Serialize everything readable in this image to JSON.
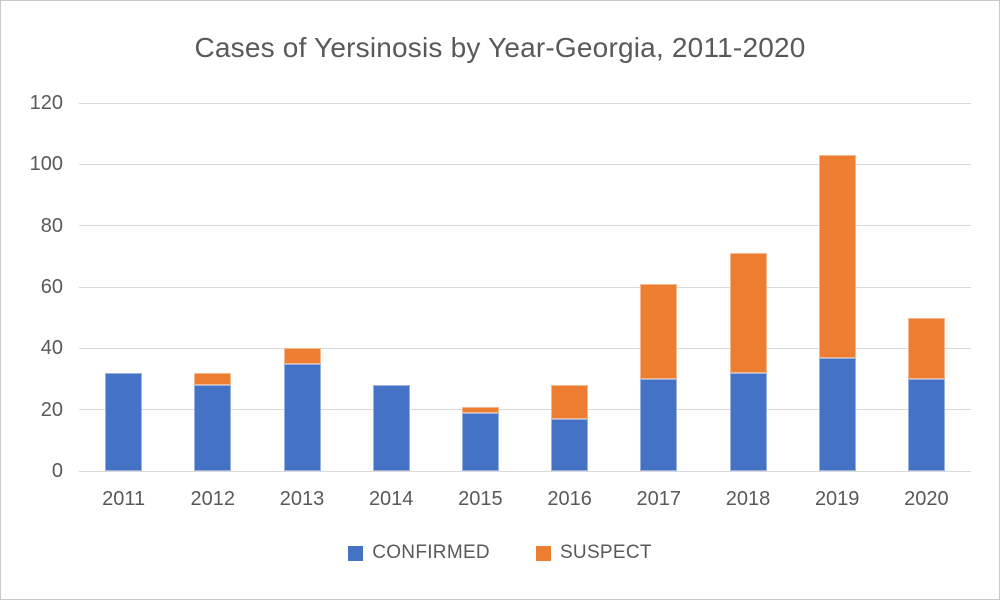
{
  "chart_data": {
    "type": "bar",
    "stacked": true,
    "title": "Cases of Yersinosis by Year-Georgia, 2011-2020",
    "categories": [
      "2011",
      "2012",
      "2013",
      "2014",
      "2015",
      "2016",
      "2017",
      "2018",
      "2019",
      "2020"
    ],
    "series": [
      {
        "name": "CONFIRMED",
        "color": "#4472C4",
        "values": [
          32,
          28,
          35,
          28,
          19,
          17,
          30,
          32,
          37,
          30
        ]
      },
      {
        "name": "SUSPECT",
        "color": "#ED7D31",
        "values": [
          0,
          4,
          5,
          0,
          2,
          11,
          31,
          39,
          66,
          20
        ]
      }
    ],
    "totals": [
      32,
      32,
      40,
      28,
      21,
      28,
      61,
      71,
      103,
      50
    ],
    "xlabel": "",
    "ylabel": "",
    "ylim": [
      0,
      120
    ],
    "yticks": [
      0,
      20,
      40,
      60,
      80,
      100,
      120
    ],
    "grid": true,
    "legend_position": "bottom"
  },
  "colors": {
    "text": "#595959",
    "gridline": "#D9D9D9",
    "background": "#FFFFFF",
    "frame_border": "#C9C9C9",
    "confirmed": "#4472C4",
    "suspect": "#ED7D31"
  }
}
